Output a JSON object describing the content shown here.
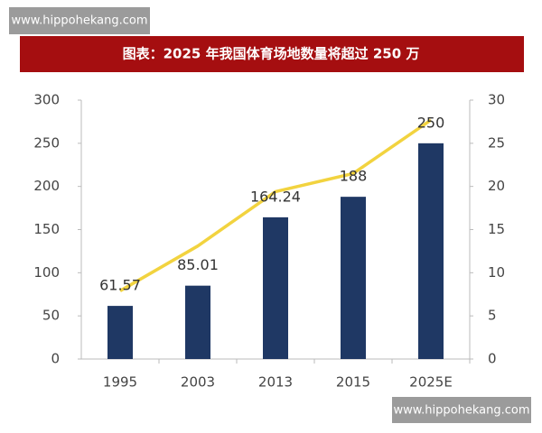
{
  "watermarks": [
    "www.hippohekang.com",
    "www.hippohekang.com"
  ],
  "chart_data": {
    "type": "bar",
    "title": "图表：2025 年我国体育场地数量将超过 250 万",
    "categories": [
      "1995",
      "2003",
      "2013",
      "2015",
      "2025E"
    ],
    "series": [
      {
        "type": "bar",
        "color": "#1f3864",
        "values": [
          61.57,
          85.01,
          164.24,
          188,
          250
        ]
      },
      {
        "type": "line",
        "axis": "y2",
        "color": "#f2d33f",
        "values": [
          7.9,
          13.1,
          19.4,
          21.5,
          27.7
        ]
      }
    ],
    "ylim": [
      0,
      300
    ],
    "yticks": [
      0,
      50,
      100,
      150,
      200,
      250,
      300
    ],
    "y2lim": [
      0,
      30
    ],
    "y2ticks": [
      0,
      5,
      10,
      15,
      20,
      25,
      30
    ],
    "grid": false
  }
}
